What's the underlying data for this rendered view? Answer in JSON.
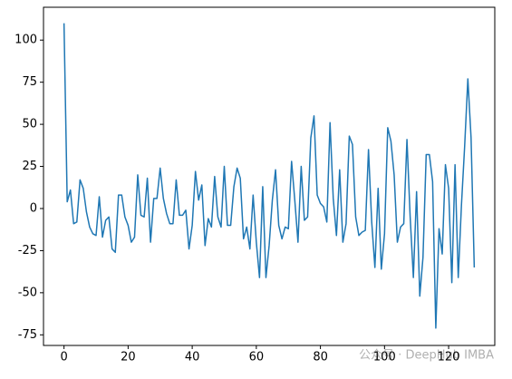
{
  "chart_data": {
    "type": "line",
    "color": "#1f77b4",
    "x": [
      0,
      1,
      2,
      3,
      4,
      5,
      6,
      7,
      8,
      9,
      10,
      11,
      12,
      13,
      14,
      15,
      16,
      17,
      18,
      19,
      20,
      21,
      22,
      23,
      24,
      25,
      26,
      27,
      28,
      29,
      30,
      31,
      32,
      33,
      34,
      35,
      36,
      37,
      38,
      39,
      40,
      41,
      42,
      43,
      44,
      45,
      46,
      47,
      48,
      49,
      50,
      51,
      52,
      53,
      54,
      55,
      56,
      57,
      58,
      59,
      60,
      61,
      62,
      63,
      64,
      65,
      66,
      67,
      68,
      69,
      70,
      71,
      72,
      73,
      74,
      75,
      76,
      77,
      78,
      79,
      80,
      81,
      82,
      83,
      84,
      85,
      86,
      87,
      88,
      89,
      90,
      91,
      92,
      93,
      94,
      95,
      96,
      97,
      98,
      99,
      100,
      101,
      102,
      103,
      104,
      105,
      106,
      107,
      108,
      109,
      110,
      111,
      112,
      113,
      114,
      115,
      116,
      117,
      118,
      119,
      120,
      121,
      122,
      123,
      124,
      125,
      126,
      127,
      128
    ],
    "values": [
      110,
      4,
      11,
      -9,
      -8,
      17,
      12,
      -2,
      -11,
      -15,
      -16,
      7,
      -17,
      -7,
      -5,
      -24,
      -26,
      8,
      8,
      -5,
      -10,
      -20,
      -17,
      20,
      -4,
      -5,
      18,
      -20,
      6,
      6,
      24,
      6,
      -3,
      -9,
      -9,
      17,
      -4,
      -4,
      -1,
      -24,
      -10,
      22,
      5,
      14,
      -22,
      -6,
      -11,
      19,
      -5,
      -11,
      25,
      -10,
      -10,
      13,
      24,
      18,
      -18,
      -11,
      -24,
      8,
      -20,
      -41,
      13,
      -41,
      -22,
      5,
      23,
      -10,
      -18,
      -11,
      -12,
      28,
      5,
      -20,
      25,
      -7,
      -5,
      42,
      55,
      8,
      3,
      1,
      -8,
      51,
      6,
      -16,
      23,
      -20,
      -9,
      43,
      38,
      -5,
      -16,
      -14,
      -13,
      35,
      -8,
      -35,
      12,
      -36,
      -15,
      48,
      40,
      20,
      -20,
      -11,
      -9,
      41,
      -5,
      -41,
      10,
      -52,
      -29,
      32,
      32,
      16,
      -71,
      -12,
      -27,
      26,
      12,
      -44,
      26,
      -41,
      2,
      37,
      77,
      42,
      -35
    ],
    "xlim": [
      -6.4,
      134.4
    ],
    "ylim": [
      -81.3,
      119.5
    ],
    "xticks": [
      0,
      20,
      40,
      60,
      80,
      100,
      120
    ],
    "yticks": [
      -75,
      -50,
      -25,
      0,
      25,
      50,
      75,
      100
    ]
  },
  "watermark": "公众号 · DeepHub IMBA"
}
